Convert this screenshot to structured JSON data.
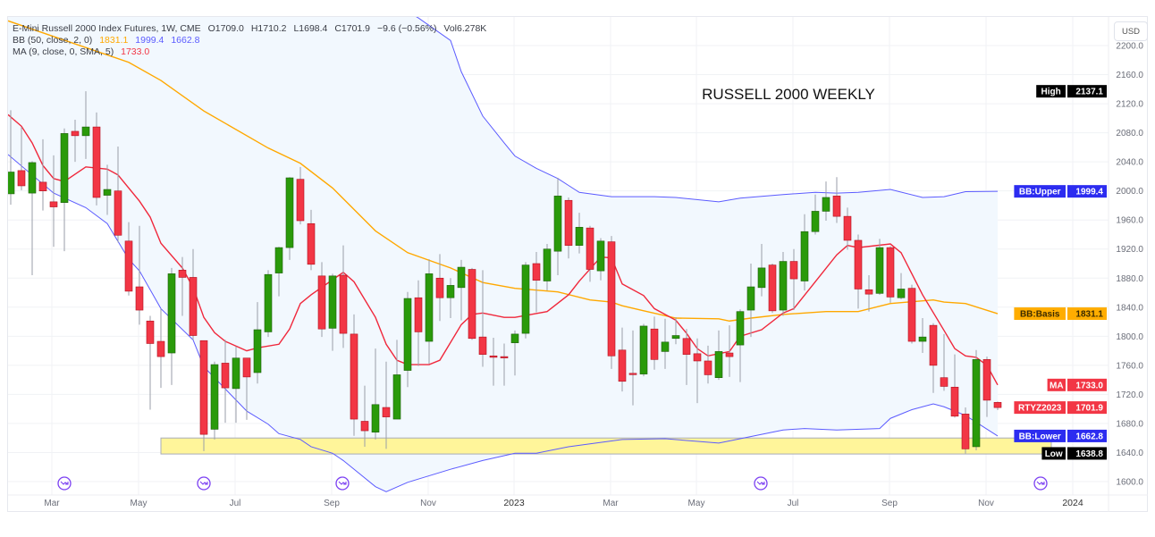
{
  "legend": {
    "symbol": "E-Mini Russell 2000 Index Futures, 1W, CME",
    "open": "O1709.0",
    "high": "H1710.2",
    "low": "L1698.4",
    "close": "C1701.9",
    "change": "−9.6 (−0.56%)",
    "volume": "Vol6.278K",
    "bb_label": "BB (50, close, 2, 0)",
    "bb_basis": "1831.1",
    "bb_upper": "1999.4",
    "bb_lower": "1662.8",
    "ma_label": "MA (9, close, 0, SMA, 5)",
    "ma_value": "1733.0"
  },
  "currency_button": "USD",
  "chart_data": {
    "type": "candlestick",
    "title": "RUSSELL 2000 WEEKLY",
    "interval": "1W",
    "ylim": [
      1580,
      2240
    ],
    "y_ticks": [
      1600,
      1640,
      1680,
      1720,
      1760,
      1800,
      1840,
      1880,
      1920,
      1960,
      2000,
      2040,
      2080,
      2120,
      2160,
      2200
    ],
    "x_tick_labels": [
      "Mar",
      "May",
      "Jul",
      "Sep",
      "Nov",
      "2023",
      "Mar",
      "May",
      "Jul",
      "Sep",
      "Nov",
      "2024"
    ],
    "grid": true,
    "colors": {
      "up": "#2a9a0a",
      "down": "#f23645",
      "bb_band": "#5b5bff",
      "bb_basis": "#ffa800",
      "ma": "#f0283c",
      "band_fill": "#f2f8fe",
      "highlight": "#fff59a"
    },
    "candles_columns": [
      "date",
      "open",
      "high",
      "low",
      "close"
    ],
    "candles": [
      [
        "2022-02-14",
        1996,
        2111,
        1981,
        2026
      ],
      [
        "2022-02-21",
        2028,
        2088,
        2001,
        2007
      ],
      [
        "2022-02-28",
        1997,
        2041,
        1884,
        2039
      ],
      [
        "2022-03-07",
        2012,
        2071,
        1973,
        2000
      ],
      [
        "2022-03-14",
        1985,
        2049,
        1923,
        1978
      ],
      [
        "2022-03-21",
        1984,
        2086,
        1917,
        2079
      ],
      [
        "2022-03-28",
        2082,
        2098,
        2040,
        2076
      ],
      [
        "2022-04-04",
        2076,
        2137.1,
        2044,
        2088
      ],
      [
        "2022-04-11",
        2088,
        2108,
        1980,
        1991
      ],
      [
        "2022-04-18",
        1994,
        2036,
        1967,
        2002
      ],
      [
        "2022-04-25",
        2000,
        2061,
        1929,
        1939
      ],
      [
        "2022-05-02",
        1931,
        1957,
        1856,
        1862
      ],
      [
        "2022-05-09",
        1868,
        1952,
        1816,
        1836
      ],
      [
        "2022-05-16",
        1821,
        1828,
        1699,
        1790
      ],
      [
        "2022-05-23",
        1793,
        1838,
        1729,
        1772
      ],
      [
        "2022-05-30",
        1777,
        1894,
        1733,
        1886
      ],
      [
        "2022-06-06",
        1891,
        1909,
        1828,
        1881
      ],
      [
        "2022-06-13",
        1881,
        1920,
        1795,
        1801
      ],
      [
        "2022-06-20",
        1794,
        1794,
        1642,
        1665
      ],
      [
        "2022-06-27",
        1672,
        1765,
        1658,
        1761
      ],
      [
        "2022-07-04",
        1763,
        1795,
        1681,
        1729
      ],
      [
        "2022-07-11",
        1728,
        1786,
        1681,
        1770
      ],
      [
        "2022-07-18",
        1770,
        1770,
        1685,
        1744
      ],
      [
        "2022-07-25",
        1750,
        1847,
        1735,
        1809
      ],
      [
        "2022-08-01",
        1806,
        1891,
        1799,
        1885
      ],
      [
        "2022-08-08",
        1887,
        1923,
        1855,
        1922
      ],
      [
        "2022-08-15",
        1922,
        2019,
        1905,
        2018
      ],
      [
        "2022-08-22",
        2016,
        2033,
        1954,
        1959
      ],
      [
        "2022-08-29",
        1955,
        1974,
        1891,
        1899
      ],
      [
        "2022-09-05",
        1883,
        1902,
        1799,
        1810
      ],
      [
        "2022-09-12",
        1811,
        1886,
        1780,
        1883
      ],
      [
        "2022-09-19",
        1884,
        1925,
        1784,
        1804
      ],
      [
        "2022-09-26",
        1803,
        1830,
        1663,
        1686
      ],
      [
        "2022-10-03",
        1683,
        1732,
        1648,
        1670
      ],
      [
        "2022-10-10",
        1668,
        1783,
        1658,
        1706
      ],
      [
        "2022-10-17",
        1702,
        1765,
        1645,
        1689
      ],
      [
        "2022-10-24",
        1686,
        1795,
        1686,
        1747
      ],
      [
        "2022-10-31",
        1753,
        1861,
        1730,
        1852
      ],
      [
        "2022-11-07",
        1853,
        1877,
        1759,
        1806
      ],
      [
        "2022-11-14",
        1793,
        1906,
        1762,
        1886
      ],
      [
        "2022-11-21",
        1880,
        1913,
        1821,
        1853
      ],
      [
        "2022-11-28",
        1853,
        1880,
        1825,
        1870
      ],
      [
        "2022-12-05",
        1867,
        1905,
        1822,
        1895
      ],
      [
        "2022-12-12",
        1892,
        1894,
        1795,
        1797
      ],
      [
        "2022-12-19",
        1799,
        1891,
        1758,
        1775
      ],
      [
        "2022-12-26",
        1773,
        1798,
        1732,
        1771
      ],
      [
        "2023-01-02",
        1772,
        1790,
        1732,
        1771
      ],
      [
        "2023-01-09",
        1791,
        1808,
        1746,
        1803
      ],
      [
        "2023-01-16",
        1804,
        1902,
        1797,
        1898
      ],
      [
        "2023-01-23",
        1900,
        1916,
        1833,
        1877
      ],
      [
        "2023-01-30",
        1876,
        1927,
        1863,
        1920
      ],
      [
        "2023-02-06",
        1917,
        2018,
        1884,
        1993
      ],
      [
        "2023-02-13",
        1987,
        1991,
        1907,
        1925
      ],
      [
        "2023-02-20",
        1925,
        1970,
        1914,
        1950
      ],
      [
        "2023-02-27",
        1949,
        1952,
        1875,
        1892
      ],
      [
        "2023-03-06",
        1890,
        1935,
        1877,
        1931
      ],
      [
        "2023-03-13",
        1930,
        1938,
        1755,
        1773
      ],
      [
        "2023-03-20",
        1781,
        1812,
        1724,
        1738
      ],
      [
        "2023-03-27",
        1749,
        1808,
        1705,
        1748
      ],
      [
        "2023-04-03",
        1748,
        1817,
        1745,
        1814
      ],
      [
        "2023-04-10",
        1810,
        1827,
        1754,
        1768
      ],
      [
        "2023-04-17",
        1779,
        1824,
        1755,
        1792
      ],
      [
        "2023-04-24",
        1797,
        1826,
        1789,
        1801
      ],
      [
        "2023-05-01",
        1797,
        1810,
        1733,
        1775
      ],
      [
        "2023-05-08",
        1776,
        1797,
        1708,
        1766
      ],
      [
        "2023-05-15",
        1766,
        1787,
        1735,
        1747
      ],
      [
        "2023-05-22",
        1743,
        1808,
        1740,
        1779
      ],
      [
        "2023-05-29",
        1777,
        1815,
        1744,
        1772
      ],
      [
        "2023-06-05",
        1788,
        1837,
        1737,
        1834
      ],
      [
        "2023-06-12",
        1836,
        1900,
        1799,
        1868
      ],
      [
        "2023-06-19",
        1867,
        1927,
        1855,
        1894
      ],
      [
        "2023-06-26",
        1898,
        1900,
        1832,
        1835
      ],
      [
        "2023-07-03",
        1836,
        1916,
        1828,
        1903
      ],
      [
        "2023-07-10",
        1903,
        1920,
        1836,
        1879
      ],
      [
        "2023-07-17",
        1876,
        1968,
        1863,
        1944
      ],
      [
        "2023-07-24",
        1944,
        1995,
        1940,
        1972
      ],
      [
        "2023-07-31",
        1972,
        2013,
        1959,
        1991
      ],
      [
        "2023-08-07",
        1993,
        2019,
        1956,
        1965
      ],
      [
        "2023-08-14",
        1965,
        1977,
        1919,
        1932
      ],
      [
        "2023-08-21",
        1932,
        1940,
        1838,
        1865
      ],
      [
        "2023-08-28",
        1864,
        1884,
        1834,
        1858
      ],
      [
        "2023-09-04",
        1859,
        1934,
        1857,
        1922
      ],
      [
        "2023-09-11",
        1922,
        1924,
        1846,
        1854
      ],
      [
        "2023-09-18",
        1853,
        1887,
        1851,
        1865
      ],
      [
        "2023-09-25",
        1866,
        1871,
        1790,
        1793
      ],
      [
        "2023-10-02",
        1793,
        1825,
        1777,
        1799
      ],
      [
        "2023-10-09",
        1815,
        1818,
        1722,
        1760
      ],
      [
        "2023-10-16",
        1743,
        1803,
        1725,
        1731
      ],
      [
        "2023-10-23",
        1730,
        1775,
        1688,
        1690
      ],
      [
        "2023-10-30",
        1693,
        1702,
        1638.8,
        1645
      ],
      [
        "2023-11-06",
        1648,
        1781,
        1643,
        1768
      ],
      [
        "2023-11-13",
        1768,
        1772,
        1689,
        1712
      ],
      [
        "2023-11-20",
        1709.0,
        1710.2,
        1698.4,
        1701.9
      ]
    ],
    "bb_upper": [
      [
        "2022-10-24",
        2256
      ],
      [
        "2022-11-07",
        2238
      ],
      [
        "2022-11-28",
        2207
      ],
      [
        "2022-12-05",
        2164
      ],
      [
        "2022-12-19",
        2103
      ],
      [
        "2023-01-02",
        2066
      ],
      [
        "2023-01-09",
        2048
      ],
      [
        "2023-01-23",
        2031
      ],
      [
        "2023-02-06",
        2017
      ],
      [
        "2023-02-20",
        1998
      ],
      [
        "2023-03-13",
        1992
      ],
      [
        "2023-04-10",
        1992
      ],
      [
        "2023-04-24",
        1991
      ],
      [
        "2023-05-22",
        1985
      ],
      [
        "2023-06-05",
        1990
      ],
      [
        "2023-07-03",
        1995
      ],
      [
        "2023-07-24",
        1998
      ],
      [
        "2023-08-07",
        1997
      ],
      [
        "2023-08-21",
        1998
      ],
      [
        "2023-09-11",
        2002
      ],
      [
        "2023-10-02",
        1991
      ],
      [
        "2023-10-16",
        1992
      ],
      [
        "2023-10-30",
        1999
      ],
      [
        "2023-11-20",
        1999.4
      ]
    ],
    "bb_basis": [
      [
        "2022-02-14",
        2234
      ],
      [
        "2022-05-02",
        2177
      ],
      [
        "2022-05-23",
        2152
      ],
      [
        "2022-06-20",
        2110
      ],
      [
        "2022-08-01",
        2059
      ],
      [
        "2022-08-22",
        2038
      ],
      [
        "2022-09-12",
        2004
      ],
      [
        "2022-10-10",
        1945
      ],
      [
        "2022-10-31",
        1915
      ],
      [
        "2022-11-28",
        1894
      ],
      [
        "2022-12-19",
        1874
      ],
      [
        "2023-01-09",
        1866
      ],
      [
        "2023-02-06",
        1861
      ],
      [
        "2023-02-27",
        1850
      ],
      [
        "2023-03-13",
        1847
      ],
      [
        "2023-03-20",
        1842
      ],
      [
        "2023-04-03",
        1835
      ],
      [
        "2023-04-24",
        1825
      ],
      [
        "2023-05-22",
        1824
      ],
      [
        "2023-05-29",
        1821
      ],
      [
        "2023-06-12",
        1825
      ],
      [
        "2023-07-03",
        1830
      ],
      [
        "2023-07-31",
        1834
      ],
      [
        "2023-08-21",
        1834
      ],
      [
        "2023-09-11",
        1845
      ],
      [
        "2023-10-09",
        1850
      ],
      [
        "2023-10-16",
        1847
      ],
      [
        "2023-10-30",
        1845
      ],
      [
        "2023-11-20",
        1831.1
      ]
    ],
    "bb_lower": [
      [
        "2022-02-14",
        2050
      ],
      [
        "2022-03-14",
        1997
      ],
      [
        "2022-04-04",
        1977
      ],
      [
        "2022-04-18",
        1955
      ],
      [
        "2022-05-02",
        1906
      ],
      [
        "2022-05-09",
        1890
      ],
      [
        "2022-05-23",
        1838
      ],
      [
        "2022-06-13",
        1795
      ],
      [
        "2022-06-20",
        1758
      ],
      [
        "2022-07-18",
        1697
      ],
      [
        "2022-08-01",
        1679
      ],
      [
        "2022-08-08",
        1666
      ],
      [
        "2022-08-22",
        1658
      ],
      [
        "2022-08-29",
        1648
      ],
      [
        "2022-09-12",
        1639
      ],
      [
        "2022-09-19",
        1629
      ],
      [
        "2022-09-26",
        1617
      ],
      [
        "2022-10-10",
        1593
      ],
      [
        "2022-10-17",
        1586
      ],
      [
        "2022-10-31",
        1599
      ],
      [
        "2022-11-28",
        1617
      ],
      [
        "2022-12-19",
        1629
      ],
      [
        "2023-01-09",
        1639
      ],
      [
        "2023-01-23",
        1639
      ],
      [
        "2023-02-13",
        1648
      ],
      [
        "2023-03-20",
        1658
      ],
      [
        "2023-04-17",
        1659
      ],
      [
        "2023-05-22",
        1653
      ],
      [
        "2023-06-05",
        1659
      ],
      [
        "2023-07-03",
        1671
      ],
      [
        "2023-07-17",
        1673
      ],
      [
        "2023-08-07",
        1671
      ],
      [
        "2023-09-04",
        1673
      ],
      [
        "2023-09-11",
        1687
      ],
      [
        "2023-09-25",
        1699
      ],
      [
        "2023-10-09",
        1707
      ],
      [
        "2023-10-16",
        1703
      ],
      [
        "2023-10-30",
        1691
      ],
      [
        "2023-11-20",
        1662.8
      ]
    ],
    "ma": [
      [
        "2022-02-14",
        2105
      ],
      [
        "2022-02-21",
        2089
      ],
      [
        "2022-02-28",
        2066
      ],
      [
        "2022-03-07",
        2035
      ],
      [
        "2022-03-14",
        2017
      ],
      [
        "2022-03-21",
        2013
      ],
      [
        "2022-04-04",
        2033
      ],
      [
        "2022-04-18",
        2030
      ],
      [
        "2022-04-25",
        2022
      ],
      [
        "2022-05-09",
        1986
      ],
      [
        "2022-05-16",
        1964
      ],
      [
        "2022-05-23",
        1928
      ],
      [
        "2022-06-06",
        1894
      ],
      [
        "2022-06-13",
        1867
      ],
      [
        "2022-06-20",
        1826
      ],
      [
        "2022-06-27",
        1805
      ],
      [
        "2022-07-04",
        1793
      ],
      [
        "2022-07-18",
        1780
      ],
      [
        "2022-07-25",
        1784
      ],
      [
        "2022-08-08",
        1789
      ],
      [
        "2022-08-15",
        1810
      ],
      [
        "2022-08-22",
        1845
      ],
      [
        "2022-08-29",
        1857
      ],
      [
        "2022-09-19",
        1888
      ],
      [
        "2022-09-26",
        1875
      ],
      [
        "2022-10-10",
        1826
      ],
      [
        "2022-10-17",
        1789
      ],
      [
        "2022-10-24",
        1767
      ],
      [
        "2022-10-31",
        1761
      ],
      [
        "2022-11-14",
        1761
      ],
      [
        "2022-11-21",
        1767
      ],
      [
        "2022-12-05",
        1816
      ],
      [
        "2022-12-12",
        1830
      ],
      [
        "2022-12-19",
        1832
      ],
      [
        "2023-01-02",
        1826
      ],
      [
        "2023-01-09",
        1826
      ],
      [
        "2023-01-30",
        1834
      ],
      [
        "2023-02-13",
        1857
      ],
      [
        "2023-02-20",
        1876
      ],
      [
        "2023-03-06",
        1909
      ],
      [
        "2023-03-13",
        1908
      ],
      [
        "2023-03-20",
        1872
      ],
      [
        "2023-04-03",
        1856
      ],
      [
        "2023-04-10",
        1838
      ],
      [
        "2023-04-24",
        1822
      ],
      [
        "2023-05-01",
        1804
      ],
      [
        "2023-05-08",
        1783
      ],
      [
        "2023-05-15",
        1773
      ],
      [
        "2023-05-22",
        1776
      ],
      [
        "2023-05-29",
        1779
      ],
      [
        "2023-06-05",
        1800
      ],
      [
        "2023-06-19",
        1809
      ],
      [
        "2023-07-03",
        1832
      ],
      [
        "2023-07-10",
        1838
      ],
      [
        "2023-07-24",
        1875
      ],
      [
        "2023-08-07",
        1912
      ],
      [
        "2023-08-14",
        1925
      ],
      [
        "2023-08-21",
        1922
      ],
      [
        "2023-09-11",
        1927
      ],
      [
        "2023-09-18",
        1915
      ],
      [
        "2023-10-02",
        1857
      ],
      [
        "2023-10-16",
        1808
      ],
      [
        "2023-10-23",
        1783
      ],
      [
        "2023-10-30",
        1773
      ],
      [
        "2023-11-06",
        1771
      ],
      [
        "2023-11-13",
        1760
      ],
      [
        "2023-11-20",
        1733.0
      ]
    ],
    "highlight_zone": {
      "from_date": "2022-05-30",
      "to_date": "2023-12-25",
      "price_low": 1638,
      "price_high": 1660
    },
    "price_tags": [
      {
        "label": "High",
        "value": "2137.1",
        "price": 2137.1,
        "color": "#000000"
      },
      {
        "label": "BB:Upper",
        "value": "1999.4",
        "price": 1999.4,
        "color": "#2c2cf0"
      },
      {
        "label": "BB:Basis",
        "value": "1831.1",
        "price": 1831.1,
        "color": "#ffad00"
      },
      {
        "label": "MA",
        "value": "1733.0",
        "price": 1733.0,
        "color": "#f23645"
      },
      {
        "label": "RTYZ2023",
        "value": "1701.9",
        "price": 1701.9,
        "color": "#f23645"
      },
      {
        "label": "BB:Lower",
        "value": "1662.8",
        "price": 1662.8,
        "color": "#2c2cf0"
      },
      {
        "label": "Low",
        "value": "1638.8",
        "price": 1638.8,
        "color": "#000000"
      }
    ],
    "event_markers": {
      "icon": "circled-arrow-right-icon",
      "count": 5,
      "color": "#7b3ff2"
    }
  }
}
